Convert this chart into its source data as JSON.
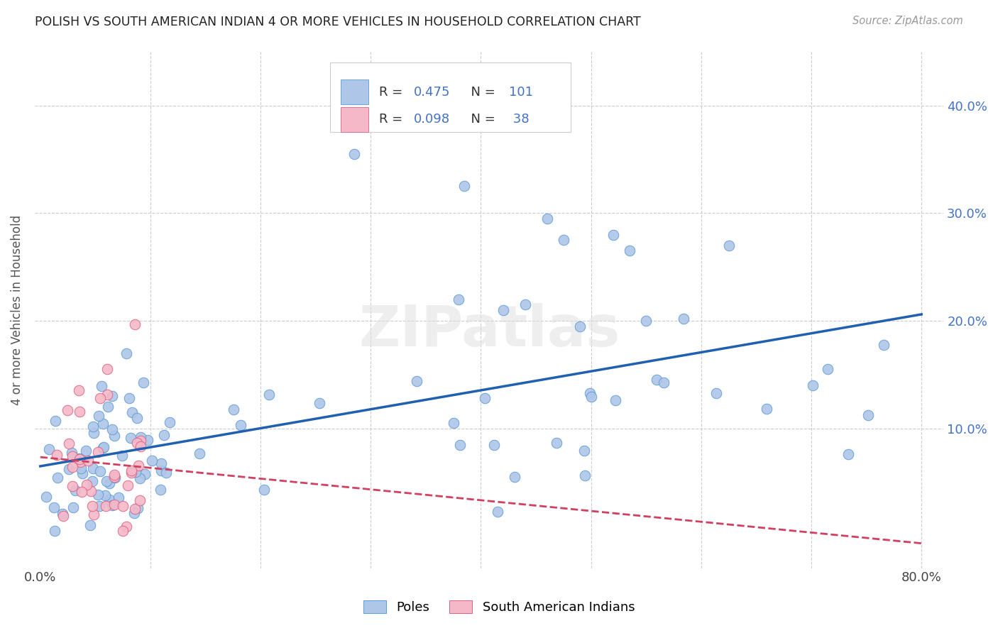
{
  "title": "POLISH VS SOUTH AMERICAN INDIAN 4 OR MORE VEHICLES IN HOUSEHOLD CORRELATION CHART",
  "source": "Source: ZipAtlas.com",
  "ylabel": "4 or more Vehicles in Household",
  "poles_R": 0.475,
  "poles_N": 101,
  "sai_R": 0.098,
  "sai_N": 38,
  "xlim": [
    -0.005,
    0.82
  ],
  "ylim": [
    -0.03,
    0.45
  ],
  "blue_color": "#aec6e8",
  "blue_edge_color": "#5b9bd5",
  "blue_line_color": "#2060b0",
  "pink_color": "#f4b8c8",
  "pink_edge_color": "#e06080",
  "pink_line_color": "#d04060",
  "background_color": "#ffffff",
  "grid_color": "#cccccc",
  "watermark": "ZIPatlas",
  "legend_R_color": "#4472c4",
  "legend_N_color": "#4472c4",
  "right_tick_color": "#4472c4"
}
